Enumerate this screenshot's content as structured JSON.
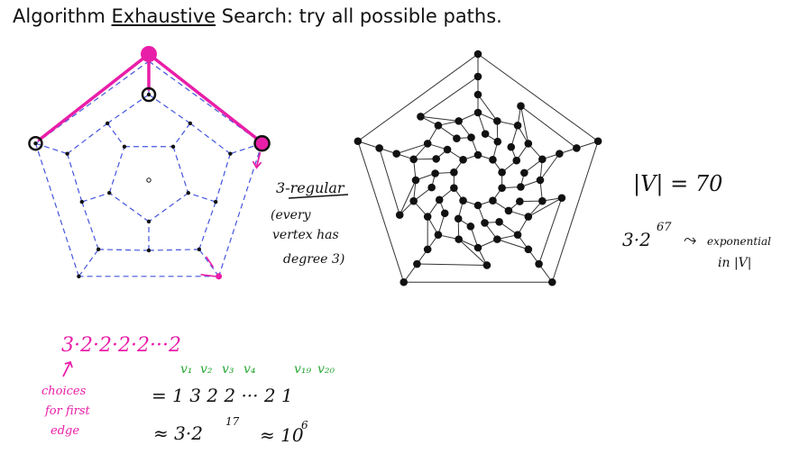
{
  "slide": {
    "title_pre": "Algorithm ",
    "title_emph": "Exhaustive",
    "title_post": " Search: try all possible paths."
  },
  "notes": {
    "regular": "3-regular",
    "every1": "(every",
    "every2": "vertex has",
    "every3": "degree 3)",
    "vertices": "|V| = 70",
    "bound_base": "3·2",
    "bound_exp": "67",
    "arrow": "⤳",
    "exp1": "exponential",
    "exp2": "in |V|",
    "product": "3·2·2·2·2···2",
    "choices1": "choices",
    "choices2": "for first",
    "choices3": "edge",
    "vlabels": [
      "v₁",
      "v₂",
      "v₃",
      "v₄",
      "v₁₉",
      "v₂₀"
    ],
    "seq": "= 1  3  2  2 ··· 2   1",
    "approx_base": "≈  3·2",
    "approx_exp": "17",
    "approx_tail": "≈ 10",
    "approx_tail_exp": "6"
  },
  "colors": {
    "magenta": "#e91ea8",
    "blue": "#4455dd",
    "green": "#2aa836",
    "ink": "#111111"
  }
}
